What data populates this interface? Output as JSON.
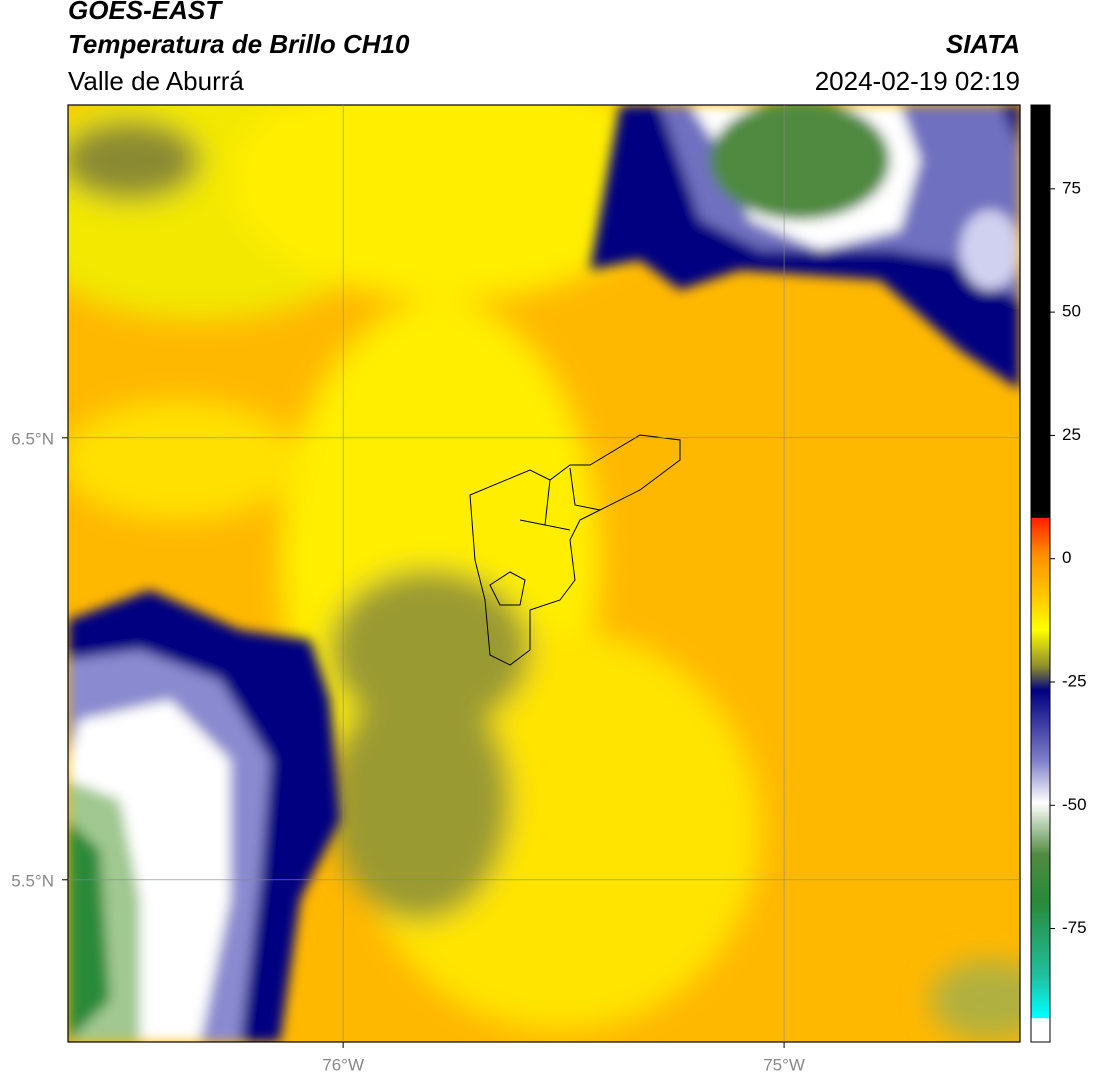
{
  "header": {
    "source": "GOES-EAST",
    "title": "Temperatura de Brillo CH10",
    "region": "Valle de Aburrá",
    "institution": "SIATA",
    "datetime": "2024-02-19 02:19"
  },
  "map": {
    "xlim": [
      -76.624,
      -74.465
    ],
    "ylim": [
      5.133,
      7.253
    ],
    "xticks": [
      {
        "value": -76,
        "label": "76°W"
      },
      {
        "value": -75,
        "label": "75°W"
      }
    ],
    "yticks": [
      {
        "value": 6.5,
        "label": "6.5°N"
      },
      {
        "value": 5.5,
        "label": "5.5°N"
      }
    ],
    "grid": true
  },
  "colorbar": {
    "lim": [
      -98,
      92
    ],
    "ticks": [
      75,
      50,
      25,
      0,
      -25,
      -50,
      -75
    ]
  }
}
